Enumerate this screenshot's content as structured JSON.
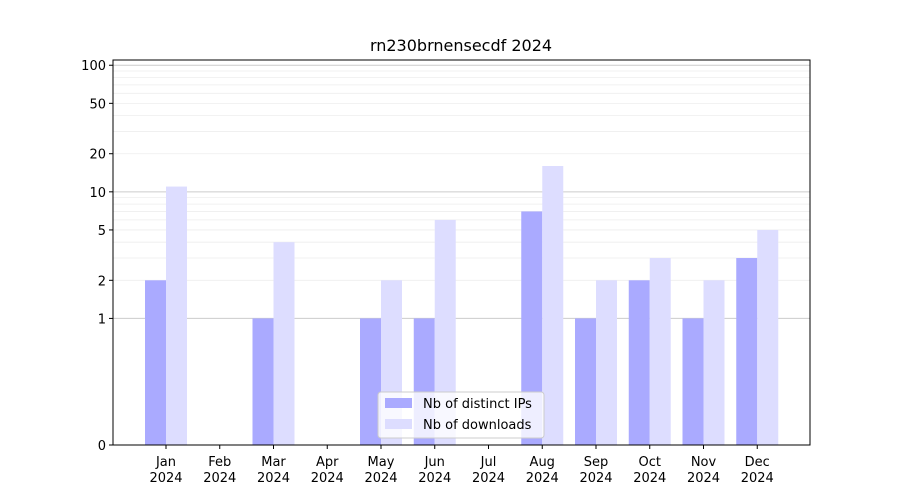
{
  "chart_data": {
    "type": "bar",
    "title": "rn230brnensecdf 2024",
    "xlabel": "",
    "ylabel": "",
    "yscale": "symlog",
    "ylim": [
      0,
      110
    ],
    "grid": "y",
    "legend_position": "lower center",
    "categories": [
      {
        "month": "Jan",
        "year": "2024"
      },
      {
        "month": "Feb",
        "year": "2024"
      },
      {
        "month": "Mar",
        "year": "2024"
      },
      {
        "month": "Apr",
        "year": "2024"
      },
      {
        "month": "May",
        "year": "2024"
      },
      {
        "month": "Jun",
        "year": "2024"
      },
      {
        "month": "Jul",
        "year": "2024"
      },
      {
        "month": "Aug",
        "year": "2024"
      },
      {
        "month": "Sep",
        "year": "2024"
      },
      {
        "month": "Oct",
        "year": "2024"
      },
      {
        "month": "Nov",
        "year": "2024"
      },
      {
        "month": "Dec",
        "year": "2024"
      }
    ],
    "yticks": [
      {
        "value": 0,
        "label": "0"
      },
      {
        "value": 1,
        "label": "1"
      },
      {
        "value": 2,
        "label": "2"
      },
      {
        "value": 5,
        "label": "5"
      },
      {
        "value": 10,
        "label": "10"
      },
      {
        "value": 20,
        "label": "20"
      },
      {
        "value": 50,
        "label": "50"
      },
      {
        "value": 100,
        "label": "100"
      }
    ],
    "series": [
      {
        "name": "Nb of distinct IPs",
        "color": "#aaaaff",
        "values": [
          2,
          0,
          1,
          0,
          1,
          1,
          0,
          7,
          1,
          2,
          1,
          3
        ]
      },
      {
        "name": "Nb of downloads",
        "color": "#ddddff",
        "values": [
          11,
          0,
          4,
          0,
          2,
          6,
          0,
          16,
          2,
          3,
          2,
          5
        ]
      }
    ]
  }
}
